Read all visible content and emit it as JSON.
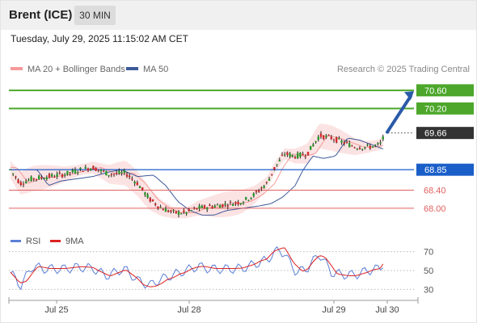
{
  "header": {
    "instrument": "Brent (ICE)",
    "timeframe": "30 MIN",
    "timestamp": "Tuesday, July 29, 2025 11:15:02 AM CET"
  },
  "legend": {
    "items": [
      {
        "label": "MA 20 + Bollinger Bands",
        "color": "#f59a9a"
      },
      {
        "label": "MA 50",
        "color": "#3c5a9a"
      }
    ],
    "credit": "Research © 2025 Trading Central"
  },
  "chart_data": [
    {
      "type": "candlestick",
      "ylim": [
        67.5,
        70.9
      ],
      "levels": [
        {
          "label": "70.60",
          "value": 70.6,
          "style": "resistance",
          "color": "#4ca72a"
        },
        {
          "label": "70.20",
          "value": 70.2,
          "style": "resistance",
          "color": "#4ca72a"
        },
        {
          "label": "69.66",
          "value": 69.66,
          "style": "last-price",
          "color": "#333333"
        },
        {
          "label": "68.85",
          "value": 68.85,
          "style": "pivot",
          "color": "#1a5ec8"
        },
        {
          "label": "68.40",
          "value": 68.4,
          "style": "support",
          "color": "#e06060"
        },
        {
          "label": "68.00",
          "value": 68.0,
          "style": "support",
          "color": "#e06060"
        }
      ],
      "forecast": {
        "from": 69.68,
        "to": 70.58,
        "direction": "up",
        "color": "#2a5aa8"
      },
      "x_labels": [
        "Jul 25",
        "Jul 28",
        "Jul 29",
        "Jul 30"
      ]
    },
    {
      "type": "line",
      "series": [
        {
          "name": "RSI",
          "color": "#5a7fd6"
        },
        {
          "name": "9MA",
          "color": "#dd2222"
        }
      ],
      "yticks": [
        "70",
        "50",
        "30"
      ],
      "ylim": [
        20,
        80
      ]
    }
  ]
}
